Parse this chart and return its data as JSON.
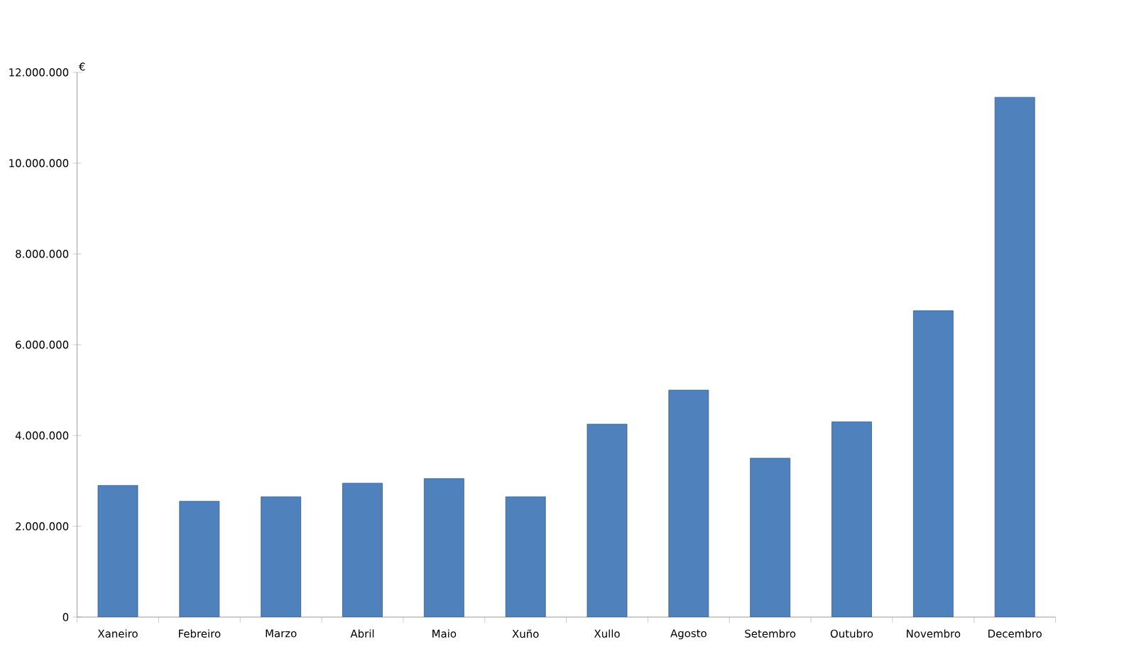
{
  "chart_data": {
    "type": "bar",
    "ylabel": "€",
    "categories": [
      "Xaneiro",
      "Febreiro",
      "Marzo",
      "Abril",
      "Maio",
      "Xuño",
      "Xullo",
      "Agosto",
      "Setembro",
      "Outubro",
      "Novembro",
      "Decembro"
    ],
    "values": [
      2900000,
      2550000,
      2650000,
      2950000,
      3050000,
      2650000,
      4250000,
      5000000,
      3500000,
      4300000,
      6750000,
      11450000
    ],
    "color": "#4f81bd",
    "ylim": [
      0,
      12000000
    ],
    "yticks": [
      0,
      {
        "value": 2000000,
        "label": "2.000.000"
      },
      {
        "value": 4000000,
        "label": "4.000.000"
      },
      {
        "value": 6000000,
        "label": "6.000.000"
      },
      {
        "value": 8000000,
        "label": "8.000.000"
      },
      {
        "value": 10000000,
        "label": "10.000.000"
      },
      {
        "value": 12000000,
        "label": "12.000.000"
      }
    ],
    "grid": false
  }
}
